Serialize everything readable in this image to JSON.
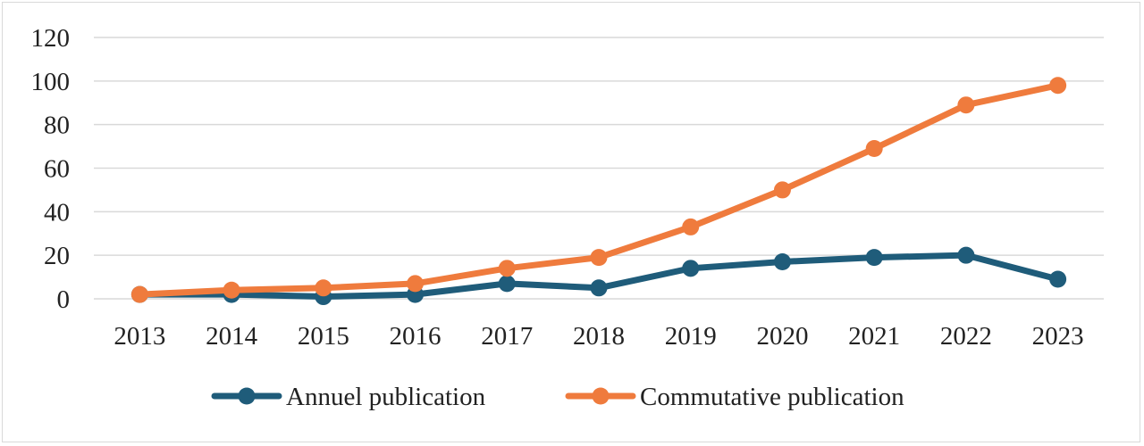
{
  "chart_data": {
    "type": "line",
    "title": "",
    "xlabel": "",
    "ylabel": "",
    "categories": [
      "2013",
      "2014",
      "2015",
      "2016",
      "2017",
      "2018",
      "2019",
      "2020",
      "2021",
      "2022",
      "2023"
    ],
    "ylim": [
      0,
      120
    ],
    "yticks": [
      0,
      20,
      40,
      60,
      80,
      100,
      120
    ],
    "grid": true,
    "legend": "bottom",
    "series": [
      {
        "name": "Annuel publication",
        "color": "#1f5c7a",
        "values": [
          2,
          2,
          1,
          2,
          7,
          5,
          14,
          17,
          19,
          20,
          9
        ]
      },
      {
        "name": "Commutative publication",
        "color": "#ef7b3d",
        "values": [
          2,
          4,
          5,
          7,
          14,
          19,
          33,
          50,
          69,
          89,
          98
        ]
      }
    ]
  }
}
